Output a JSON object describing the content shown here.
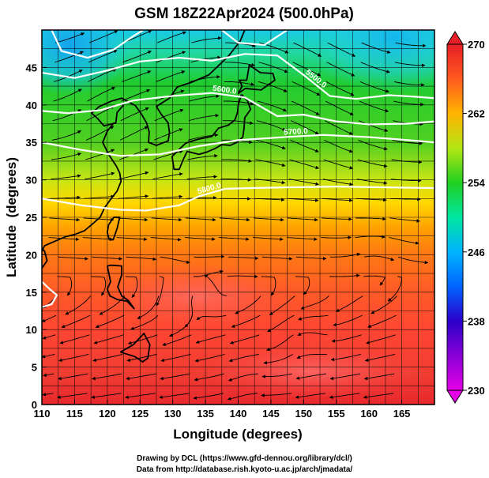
{
  "chart_data": {
    "type": "heatmap",
    "title": "GSM 18Z22Apr2024 (500.0hPa)",
    "xlabel": "Longitude (degrees)",
    "ylabel": "Latitude  (degrees)",
    "xlim": [
      110,
      170
    ],
    "ylim": [
      0,
      50
    ],
    "x_ticks": [
      110,
      115,
      120,
      125,
      130,
      135,
      140,
      145,
      150,
      155,
      160,
      165
    ],
    "y_ticks": [
      0,
      5,
      10,
      15,
      20,
      25,
      30,
      35,
      40,
      45
    ],
    "colorbar": {
      "range": [
        230,
        270
      ],
      "ticks": [
        230,
        238,
        246,
        254,
        262,
        270
      ],
      "colors": [
        "#e600e6",
        "#2b00c8",
        "#0050ff",
        "#00c8ff",
        "#00e6a0",
        "#20d020",
        "#b4e614",
        "#ffe600",
        "#ff9600",
        "#ff3c28",
        "#e61e28"
      ]
    },
    "contours": [
      {
        "label": "5800.0",
        "points": [
          [
            110,
            27.5
          ],
          [
            116,
            26.6
          ],
          [
            122,
            26.0
          ],
          [
            126,
            25.9
          ],
          [
            131,
            26.6
          ],
          [
            134,
            27.8
          ],
          [
            138,
            28.8
          ],
          [
            142,
            28.9
          ],
          [
            148,
            29.0
          ],
          [
            155,
            29.1
          ],
          [
            162,
            29.0
          ],
          [
            170,
            28.9
          ]
        ]
      },
      {
        "label": "5700.0",
        "points": [
          [
            110,
            35.0
          ],
          [
            116,
            34.0
          ],
          [
            122,
            33.2
          ],
          [
            128,
            33.4
          ],
          [
            134,
            34.5
          ],
          [
            140,
            35.3
          ],
          [
            147,
            35.7
          ],
          [
            153,
            36.0
          ],
          [
            160,
            35.7
          ],
          [
            166,
            35.3
          ],
          [
            170,
            35.0
          ]
        ]
      },
      {
        "label": "5600.0",
        "points": [
          [
            110,
            39.2
          ],
          [
            114,
            38.9
          ],
          [
            119,
            39.3
          ],
          [
            124,
            40.6
          ],
          [
            130,
            41.2
          ],
          [
            136,
            41.6
          ],
          [
            141,
            41.0
          ],
          [
            146,
            38.5
          ],
          [
            150,
            38.7
          ],
          [
            155,
            37.8
          ],
          [
            160,
            37.4
          ],
          [
            166,
            37.5
          ],
          [
            170,
            37.8
          ]
        ]
      },
      {
        "label": "5500.0",
        "points": [
          [
            110,
            44.3
          ],
          [
            115,
            43.6
          ],
          [
            120,
            44.6
          ],
          [
            125,
            45.8
          ],
          [
            131,
            46.3
          ],
          [
            136,
            45.9
          ],
          [
            141,
            46.8
          ],
          [
            146,
            46.6
          ],
          [
            150,
            44.0
          ],
          [
            154,
            41.2
          ],
          [
            158,
            40.8
          ],
          [
            163,
            41.3
          ],
          [
            167,
            41.1
          ],
          [
            170,
            40.9
          ]
        ]
      },
      {
        "label": "5400.0",
        "points": [
          [
            111.5,
            50.0
          ],
          [
            113,
            47.2
          ],
          [
            117,
            46.3
          ],
          [
            121,
            47.4
          ],
          [
            124,
            49.2
          ],
          [
            125.5,
            50.0
          ]
        ]
      },
      {
        "label": "5400.0",
        "points": [
          [
            137.5,
            50.0
          ],
          [
            140,
            48.3
          ],
          [
            144,
            48.0
          ],
          [
            147.5,
            50.0
          ]
        ]
      },
      {
        "label": "5800.0",
        "points": [
          [
            110,
            16.4
          ],
          [
            111.2,
            15.4
          ],
          [
            112.3,
            14.6
          ],
          [
            111.5,
            13.4
          ],
          [
            110,
            13.0
          ]
        ]
      }
    ],
    "coastlines": [
      [
        [
          122.5,
          40.0
        ],
        [
          121.5,
          39.0
        ],
        [
          121.3,
          37.6
        ],
        [
          119.5,
          37.2
        ],
        [
          118.5,
          38.2
        ],
        [
          117.6,
          38.9
        ],
        [
          118.8,
          39.8
        ],
        [
          120.6,
          40.5
        ],
        [
          122.2,
          40.9
        ],
        [
          124.3,
          39.9
        ],
        [
          125.2,
          38.8
        ],
        [
          126.0,
          37.6
        ],
        [
          126.4,
          36.4
        ],
        [
          126.3,
          35.0
        ],
        [
          127.5,
          34.6
        ],
        [
          129.3,
          35.2
        ],
        [
          129.5,
          36.3
        ],
        [
          129.3,
          37.6
        ],
        [
          128.2,
          38.8
        ],
        [
          127.5,
          39.8
        ],
        [
          129.5,
          40.9
        ],
        [
          130.7,
          42.4
        ],
        [
          132.8,
          43.0
        ],
        [
          135.5,
          44.0
        ],
        [
          138.5,
          46.5
        ],
        [
          140.3,
          48.5
        ],
        [
          141.0,
          50.0
        ]
      ],
      [
        [
          121.0,
          37.6
        ],
        [
          120.0,
          36.5
        ],
        [
          119.3,
          35.0
        ],
        [
          120.2,
          33.4
        ],
        [
          121.4,
          31.8
        ],
        [
          121.9,
          30.9
        ],
        [
          122.1,
          29.8
        ],
        [
          121.5,
          28.5
        ],
        [
          120.6,
          27.5
        ],
        [
          119.6,
          26.3
        ],
        [
          118.9,
          25.0
        ],
        [
          117.6,
          24.0
        ],
        [
          116.5,
          23.2
        ],
        [
          115.0,
          22.7
        ],
        [
          113.6,
          22.4
        ],
        [
          112.0,
          21.8
        ],
        [
          110.4,
          21.2
        ],
        [
          110.0,
          20.4
        ]
      ],
      [
        [
          140.5,
          41.4
        ],
        [
          140.0,
          40.0
        ],
        [
          139.9,
          39.0
        ],
        [
          139.5,
          38.0
        ],
        [
          138.5,
          37.3
        ],
        [
          137.0,
          36.9
        ],
        [
          136.0,
          35.8
        ],
        [
          133.8,
          35.4
        ],
        [
          132.0,
          34.9
        ],
        [
          130.9,
          34.0
        ],
        [
          129.9,
          33.1
        ],
        [
          130.2,
          31.4
        ],
        [
          131.0,
          31.4
        ],
        [
          131.5,
          32.5
        ],
        [
          132.2,
          33.8
        ],
        [
          134.0,
          33.4
        ],
        [
          135.2,
          33.7
        ],
        [
          136.5,
          34.2
        ],
        [
          137.5,
          34.7
        ],
        [
          138.8,
          34.6
        ],
        [
          139.8,
          35.0
        ],
        [
          140.7,
          35.7
        ],
        [
          140.9,
          36.9
        ],
        [
          141.0,
          38.3
        ],
        [
          141.9,
          39.4
        ],
        [
          141.4,
          40.6
        ],
        [
          140.5,
          41.4
        ]
      ],
      [
        [
          140.0,
          41.5
        ],
        [
          140.6,
          42.5
        ],
        [
          140.2,
          43.3
        ],
        [
          141.3,
          43.3
        ],
        [
          141.7,
          45.3
        ],
        [
          143.4,
          44.3
        ],
        [
          145.3,
          44.2
        ],
        [
          145.6,
          43.3
        ],
        [
          143.5,
          42.0
        ],
        [
          141.1,
          42.2
        ],
        [
          140.0,
          41.5
        ]
      ],
      [
        [
          120.3,
          22.0
        ],
        [
          120.0,
          23.0
        ],
        [
          120.2,
          24.0
        ],
        [
          121.0,
          25.0
        ],
        [
          121.9,
          25.0
        ],
        [
          121.5,
          23.5
        ],
        [
          120.9,
          22.0
        ],
        [
          120.3,
          22.0
        ]
      ],
      [
        [
          120.0,
          18.5
        ],
        [
          120.5,
          16.4
        ],
        [
          120.0,
          15.4
        ],
        [
          120.4,
          14.5
        ],
        [
          121.6,
          14.0
        ],
        [
          123.0,
          13.8
        ],
        [
          124.1,
          12.8
        ],
        [
          123.2,
          13.9
        ],
        [
          122.2,
          14.5
        ],
        [
          121.6,
          15.7
        ],
        [
          122.2,
          17.3
        ],
        [
          122.2,
          18.5
        ],
        [
          120.6,
          18.6
        ],
        [
          120.0,
          18.5
        ]
      ],
      [
        [
          122.0,
          7.0
        ],
        [
          124.0,
          8.0
        ],
        [
          125.6,
          9.5
        ],
        [
          126.5,
          8.0
        ],
        [
          126.2,
          6.2
        ],
        [
          125.4,
          5.7
        ],
        [
          124.2,
          6.4
        ],
        [
          122.0,
          7.0
        ]
      ],
      [
        [
          108.8,
          21.6
        ],
        [
          110.4,
          20.5
        ],
        [
          110.8,
          19.2
        ],
        [
          110.0,
          18.2
        ],
        [
          108.8,
          18.6
        ],
        [
          108.6,
          19.7
        ],
        [
          108.8,
          21.6
        ]
      ]
    ],
    "credit_lines": [
      "Drawing by DCL (https://www.gfd-dennou.org/library/dcl/)",
      "Data from http://database.rish.kyoto-u.ac.jp/arch/jmadata/"
    ]
  }
}
